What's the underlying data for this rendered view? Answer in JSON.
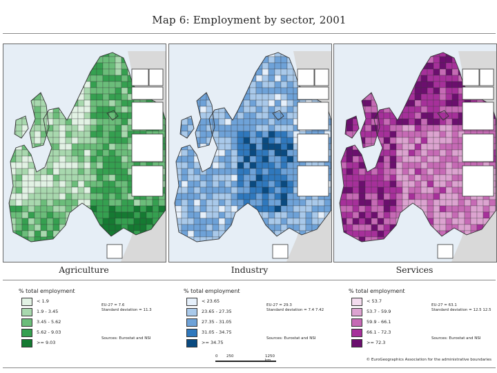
{
  "title": "Map 6: Employment by sector, 2001",
  "panels": [
    {
      "label": "Agriculture",
      "legend_header": "% total employment",
      "classes": [
        {
          "label": "< 1.9",
          "color": "#e2f2e4"
        },
        {
          "label": "1.9 - 3.45",
          "color": "#a8d8ae"
        },
        {
          "label": "3.45 - 5.62",
          "color": "#6bbd7a"
        },
        {
          "label": "5.62 - 9.03",
          "color": "#35a050"
        },
        {
          "label": ">= 9.03",
          "color": "#157a32"
        }
      ],
      "stats": [
        "EU-27 = 7.6",
        "Standard deviation = 11.3"
      ],
      "sources": "Sources: Eurostat and NSI"
    },
    {
      "label": "Industry",
      "legend_header": "% total employment",
      "classes": [
        {
          "label": "< 23.65",
          "color": "#e6f0fb"
        },
        {
          "label": "23.65 - 27.35",
          "color": "#a9c9ea"
        },
        {
          "label": "27.35 - 31.05",
          "color": "#6ea2d8"
        },
        {
          "label": "31.05 - 34.75",
          "color": "#2f78bd"
        },
        {
          "label": ">= 34.75",
          "color": "#0a4a80"
        }
      ],
      "stats": [
        "EU-27 = 29.3",
        "Standard deviation = 7.4 7.42"
      ],
      "sources": "Sources: Eurostat and NSI"
    },
    {
      "label": "Services",
      "legend_header": "% total employment",
      "classes": [
        {
          "label": "< 53.7",
          "color": "#f3dcee"
        },
        {
          "label": "53.7 - 59.9",
          "color": "#dca3d0"
        },
        {
          "label": "59.9 - 66.1",
          "color": "#c66ab5"
        },
        {
          "label": "66.1 - 72.3",
          "color": "#a6309a"
        },
        {
          "label": ">= 72.3",
          "color": "#6b0f6e"
        }
      ],
      "stats": [
        "EU-27 = 63.1",
        "Standard deviation = 12.5 12.5"
      ],
      "sources": "Sources: Eurostat and NSI"
    }
  ],
  "scale": {
    "start": "0",
    "mid": "250",
    "end": "1250 km"
  },
  "copyright": "© EuroGeographics Association for the administrative boundaries",
  "colors": {
    "sea": "#e6eef6",
    "nonEU": "#d9d9d9",
    "border": "#333333"
  }
}
